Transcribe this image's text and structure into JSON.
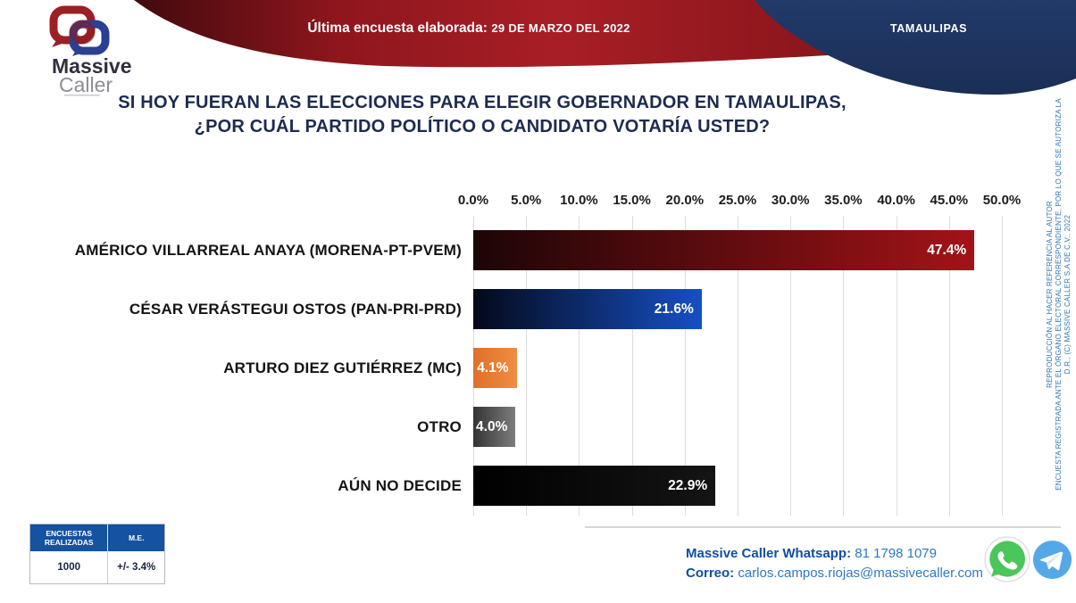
{
  "header": {
    "ribbon_label": "Última encuesta elaborada:",
    "ribbon_date": "29 DE MARZO DEL 2022",
    "state_label": "TAMAULIPAS",
    "logo_word1": "Massive",
    "logo_word2": "Caller",
    "ribbon_color": "#a01b22",
    "navy_color": "#1e3460"
  },
  "title": {
    "line1": "SI HOY FUERAN LAS ELECCIONES PARA ELEGIR GOBERNADOR EN TAMAULIPAS,",
    "line2": "¿POR CUÁL PARTIDO POLÍTICO O CANDIDATO VOTARÍA USTED?"
  },
  "chart_data": {
    "type": "bar",
    "orientation": "horizontal",
    "title": "SI HOY FUERAN LAS ELECCIONES PARA ELEGIR GOBERNADOR EN TAMAULIPAS, ¿POR CUÁL PARTIDO POLÍTICO O CANDIDATO VOTARÍA USTED?",
    "categories": [
      "AMÉRICO VILLARREAL ANAYA (MORENA-PT-PVEM)",
      "CÉSAR VERÁSTEGUI OSTOS (PAN-PRI-PRD)",
      "ARTURO DIEZ GUTIÉRREZ (MC)",
      "OTRO",
      "AÚN NO DECIDE"
    ],
    "values": [
      47.4,
      21.6,
      4.1,
      4.0,
      22.9
    ],
    "value_labels": [
      "47.4%",
      "21.6%",
      "4.1%",
      "4.0%",
      "22.9%"
    ],
    "bar_colors": [
      {
        "from": "#1d0506",
        "to": "#a31318"
      },
      {
        "from": "#04091a",
        "to": "#1650c4"
      },
      {
        "from": "#df7029",
        "to": "#f08d42"
      },
      {
        "from": "#333333",
        "to": "#7d7d7d"
      },
      {
        "from": "#000000",
        "to": "#141414"
      }
    ],
    "xlim": [
      0,
      50
    ],
    "x_ticks": [
      "0.0%",
      "5.0%",
      "10.0%",
      "15.0%",
      "20.0%",
      "25.0%",
      "30.0%",
      "35.0%",
      "40.0%",
      "45.0%",
      "50.0%"
    ],
    "grid": true,
    "legend": false
  },
  "stats_table": {
    "headers": [
      "ENCUESTAS REALIZADAS",
      "M.E."
    ],
    "values": [
      "1000",
      "+/- 3.4%"
    ]
  },
  "contact": {
    "whatsapp_label": "Massive Caller Whatsapp:",
    "whatsapp_value": "81 1798 1079",
    "email_label": "Correo:",
    "email_value": "carlos.campos.riojas@massivecaller.com",
    "whatsapp_green": "#4bc65a",
    "telegram_blue": "#55a8e8"
  },
  "legal_note": {
    "copyright": "D.R., (C) MASSIVE CALLER S.A DE C.V., 2022",
    "disclaimer_line1": "ENCUESTA REGISTRADA ANTE EL ÓRGANO ELECTORAL CORRESPONDIENTE, POR LO QUE SE AUTORIZA LA",
    "disclaimer_line2": "REPRODUCCIÓN AL HACER REFERENCIA AL AUTOR"
  }
}
